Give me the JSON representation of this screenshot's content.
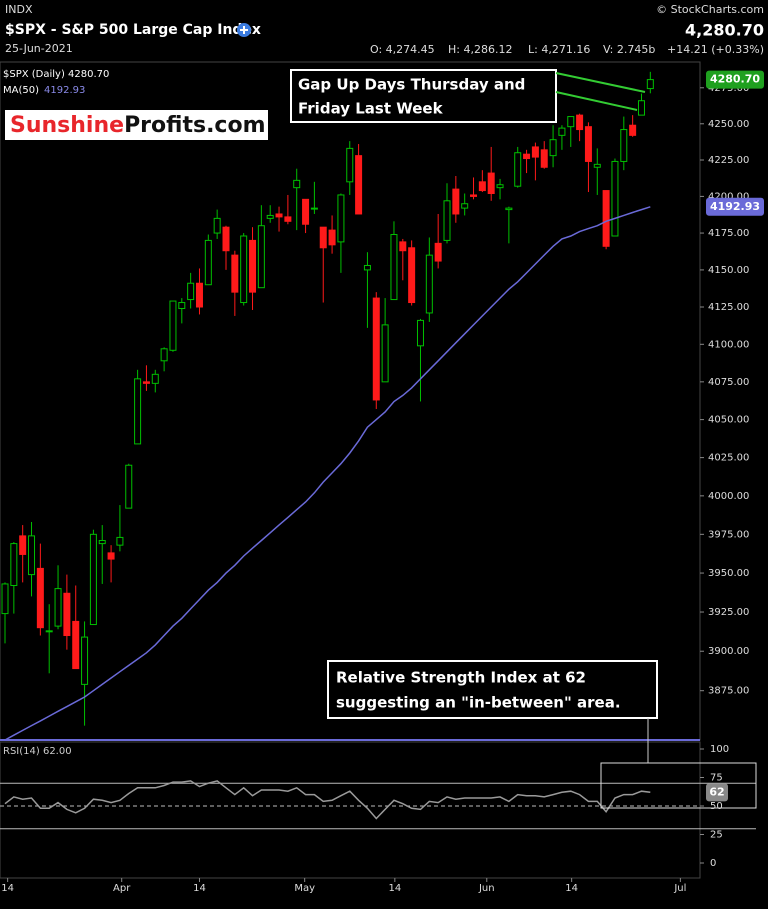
{
  "header": {
    "exchange": "INDX",
    "title": "$SPX - S&P 500 Large Cap Index",
    "date": "25-Jun-2021",
    "copyright": "© StockCharts.com",
    "last": "4,280.70",
    "open": "O: 4,274.45",
    "high": "H: 4,286.12",
    "low": "L: 4,271.16",
    "volume": "V: 2.745b",
    "change": "+14.21 (+0.33%)"
  },
  "logo": [
    "Sunshine",
    "Profits.com"
  ],
  "chart_data": {
    "type": "candlestick",
    "log_scale": true,
    "legend": {
      "price": "$SPX (Daily) 4280.70",
      "ma": "MA(50)",
      "ma_value": "4192.93",
      "rsi": "RSI(14) 62.00"
    },
    "up_color": "#00c000",
    "down_color": "#ff1a1a",
    "ma_color": "#6a6ad8",
    "rsi_color": "#9a9a9a",
    "open": [
      3924,
      3942,
      3974,
      3949,
      3953,
      3913,
      3916,
      3937,
      3919,
      3879,
      3917,
      3969,
      3963,
      3968,
      3992,
      4034,
      4075,
      4074,
      4089,
      4096,
      4124,
      4130,
      4141,
      4140,
      4175,
      4179,
      4160,
      4128,
      4170,
      4138,
      4185,
      4188,
      4186,
      4206,
      4198,
      4192,
      4179,
      4177,
      4169,
      4210,
      4228,
      4150,
      4131,
      4075,
      4130,
      4169,
      4165,
      4099,
      4121,
      4168,
      4170,
      4205,
      4192,
      4201,
      4210,
      4216,
      4206,
      4191,
      4207,
      4229,
      4234,
      4232,
      4228,
      4242,
      4248,
      4256,
      4248,
      4220,
      4204,
      4173,
      4224,
      4249,
      4256,
      4274.45
    ],
    "high": [
      3944,
      3970,
      3981,
      3983,
      3969,
      3930,
      3955,
      3949,
      3942,
      3919,
      3978,
      3981,
      3968,
      3994,
      4021,
      4083,
      4086,
      4083,
      4098,
      4129,
      4131,
      4148,
      4151,
      4174,
      4191,
      4180,
      4163,
      4175,
      4179,
      4194,
      4194,
      4193,
      4201,
      4219,
      4198,
      4210,
      4179,
      4187,
      4202,
      4238,
      4236,
      4162,
      4135,
      4131,
      4183,
      4171,
      4170,
      4117,
      4172,
      4188,
      4209,
      4214,
      4202,
      4213,
      4218,
      4234,
      4212,
      4193,
      4234,
      4232,
      4237,
      4238,
      4249,
      4249,
      4255,
      4257,
      4251,
      4233,
      4204,
      4226,
      4255,
      4256,
      4271,
      4286.12
    ],
    "low": [
      3905,
      3924,
      3944,
      3935,
      3910,
      3886,
      3914,
      3901,
      3889,
      3853,
      3917,
      3943,
      3944,
      3964,
      3992,
      4034,
      4069,
      4068,
      4082,
      4095,
      4114,
      4124,
      4120,
      4140,
      4171,
      4150,
      4119,
      4126,
      4123,
      4138,
      4182,
      4176,
      4181,
      4177,
      4175,
      4188,
      4128,
      4161,
      4148,
      4201,
      4188,
      4111,
      4057,
      4075,
      4130,
      4143,
      4126,
      4062,
      4115,
      4151,
      4168,
      4182,
      4187,
      4198,
      4203,
      4197,
      4198,
      4168,
      4206,
      4216,
      4211,
      4219,
      4220,
      4232,
      4234,
      4238,
      4203,
      4201,
      4164,
      4173,
      4218,
      4241,
      4256,
      4271.16
    ],
    "close": [
      3943,
      3969,
      3962,
      3974,
      3915,
      3913,
      3940,
      3910,
      3889,
      3909,
      3975,
      3971,
      3959,
      3973,
      4020,
      4077,
      4074,
      4080,
      4097,
      4129,
      4128,
      4141,
      4125,
      4170,
      4185,
      4163,
      4135,
      4173,
      4135,
      4180,
      4187,
      4186,
      4183,
      4211,
      4181,
      4192,
      4165,
      4167,
      4201,
      4233,
      4188,
      4153,
      4063,
      4113,
      4174,
      4163,
      4128,
      4116,
      4160,
      4156,
      4197,
      4188,
      4195,
      4200,
      4204,
      4202,
      4208,
      4192,
      4230,
      4226,
      4227,
      4220,
      4239,
      4247,
      4255,
      4246,
      4224,
      4222,
      4166,
      4224,
      4246,
      4242,
      4266,
      4280.7
    ],
    "ma": [
      3844,
      3847,
      3850,
      3853,
      3856,
      3859,
      3862,
      3865,
      3868,
      3871,
      3875,
      3879,
      3883,
      3887,
      3891,
      3895,
      3899,
      3904,
      3910,
      3916,
      3921,
      3927,
      3933,
      3939,
      3944,
      3950,
      3955,
      3961,
      3966,
      3971,
      3976,
      3981,
      3986,
      3991,
      3996,
      4002,
      4009,
      4015,
      4021,
      4028,
      4036,
      4045,
      4050,
      4055,
      4062,
      4066,
      4071,
      4077,
      4083,
      4089,
      4095,
      4101,
      4107,
      4113,
      4119,
      4125,
      4131,
      4137,
      4142,
      4148,
      4154,
      4160,
      4166,
      4171,
      4173,
      4176,
      4178,
      4180,
      4183,
      4185,
      4187,
      4189,
      4191,
      4192.93
    ],
    "rsi": [
      52,
      58,
      56,
      57,
      48,
      48,
      53,
      47,
      44,
      48,
      56,
      55,
      53,
      55,
      61,
      66,
      66,
      66,
      68,
      71,
      71,
      72,
      67,
      70,
      72,
      66,
      60,
      66,
      59,
      64,
      64,
      64,
      63,
      66,
      60,
      60,
      54,
      55,
      59,
      63,
      55,
      48,
      39,
      47,
      55,
      52,
      48,
      47,
      54,
      53,
      58,
      56,
      57,
      57,
      57,
      57,
      58,
      54,
      60,
      59,
      59,
      58,
      60,
      62,
      63,
      60,
      54,
      54,
      45,
      57,
      60,
      60,
      63,
      62
    ],
    "last_label": "4280.70",
    "ma_label": "4192.93",
    "rsi_label": "62",
    "ylim": [
      3844,
      4293
    ],
    "yticks": [
      {
        "value": 3875,
        "label": "3875.00"
      },
      {
        "value": 3900,
        "label": "3900.00"
      },
      {
        "value": 3925,
        "label": "3925.00"
      },
      {
        "value": 3950,
        "label": "3950.00"
      },
      {
        "value": 3975,
        "label": "3975.00"
      },
      {
        "value": 4000,
        "label": "4000.00"
      },
      {
        "value": 4025,
        "label": "4025.00"
      },
      {
        "value": 4050,
        "label": "4050.00"
      },
      {
        "value": 4075,
        "label": "4075.00"
      },
      {
        "value": 4100,
        "label": "4100.00"
      },
      {
        "value": 4125,
        "label": "4125.00"
      },
      {
        "value": 4150,
        "label": "4150.00"
      },
      {
        "value": 4175,
        "label": "4175.00"
      },
      {
        "value": 4200,
        "label": "4200.00"
      },
      {
        "value": 4225,
        "label": "4225.00"
      },
      {
        "value": 4250,
        "label": "4250.00"
      },
      {
        "value": 4275,
        "label": "4275.00"
      }
    ],
    "rsi_lim": [
      0,
      100
    ],
    "rsi_ticks": [
      0,
      25,
      50,
      75,
      100
    ],
    "rsi_levels": [
      70,
      30
    ],
    "rsi_mid": 50,
    "xticks": [
      {
        "value": 0.3,
        "label": "14"
      },
      {
        "value": 13.2,
        "label": "Apr"
      },
      {
        "value": 22,
        "label": "14"
      },
      {
        "value": 33.9,
        "label": "May"
      },
      {
        "value": 44.1,
        "label": "14"
      },
      {
        "value": 54.5,
        "label": "Jun"
      },
      {
        "value": 64.1,
        "label": "14"
      },
      {
        "value": 76.4,
        "label": "Jul"
      }
    ],
    "annotations": [
      [
        "Gap Up Days Thursday and",
        "Friday Last Week"
      ],
      [
        "Relative Strength Index at 62",
        "suggesting an \"in-between\" area."
      ]
    ]
  }
}
